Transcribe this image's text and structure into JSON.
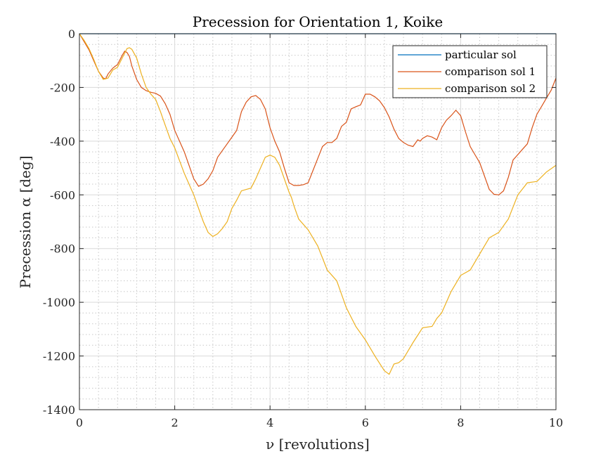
{
  "chart_data": {
    "type": "line",
    "title": "Precession for Orientation 1, Koike",
    "xlabel": "ν [revolutions]",
    "ylabel": "Precession α [deg]",
    "xlim": [
      0,
      10
    ],
    "ylim": [
      -1400,
      0
    ],
    "xticks": [
      0,
      2,
      4,
      6,
      8,
      10
    ],
    "xtick_labels": [
      "0",
      "2",
      "4",
      "6",
      "8",
      "10"
    ],
    "yticks": [
      0,
      -200,
      -400,
      -600,
      -800,
      -1000,
      -1200,
      -1400
    ],
    "ytick_labels": [
      "0",
      "-200",
      "-400",
      "-600",
      "-800",
      "-1000",
      "-1200",
      "-1400"
    ],
    "grid": true,
    "minor_grid": true,
    "legend_position": "top-right",
    "series": [
      {
        "name": "particular sol",
        "color": "#0072BD",
        "x": [
          0,
          10
        ],
        "y": [
          0,
          0
        ]
      },
      {
        "name": "comparison sol 1",
        "color": "#D95319",
        "x": [
          0,
          0.1,
          0.2,
          0.3,
          0.4,
          0.5,
          0.55,
          0.6,
          0.7,
          0.8,
          0.9,
          0.95,
          1.0,
          1.05,
          1.1,
          1.2,
          1.3,
          1.4,
          1.5,
          1.6,
          1.7,
          1.8,
          1.9,
          2.0,
          2.2,
          2.4,
          2.5,
          2.6,
          2.7,
          2.8,
          2.9,
          3.0,
          3.1,
          3.2,
          3.3,
          3.4,
          3.5,
          3.6,
          3.7,
          3.8,
          3.9,
          4.0,
          4.1,
          4.2,
          4.3,
          4.4,
          4.5,
          4.6,
          4.7,
          4.8,
          4.9,
          5.0,
          5.1,
          5.2,
          5.3,
          5.4,
          5.5,
          5.6,
          5.7,
          5.8,
          5.9,
          6.0,
          6.1,
          6.2,
          6.3,
          6.4,
          6.5,
          6.6,
          6.7,
          6.8,
          6.9,
          7.0,
          7.1,
          7.15,
          7.2,
          7.3,
          7.4,
          7.5,
          7.6,
          7.7,
          7.8,
          7.9,
          8.0,
          8.1,
          8.2,
          8.3,
          8.4,
          8.5,
          8.6,
          8.7,
          8.8,
          8.9,
          9.0,
          9.1,
          9.2,
          9.3,
          9.4,
          9.5,
          9.6,
          9.7,
          9.8,
          9.9,
          10.0
        ],
        "y": [
          0,
          -30,
          -60,
          -100,
          -140,
          -165,
          -168,
          -150,
          -128,
          -115,
          -80,
          -65,
          -70,
          -85,
          -120,
          -170,
          -200,
          -212,
          -218,
          -222,
          -232,
          -260,
          -300,
          -360,
          -440,
          -540,
          -568,
          -560,
          -540,
          -510,
          -460,
          -435,
          -410,
          -385,
          -360,
          -290,
          -255,
          -235,
          -230,
          -245,
          -280,
          -350,
          -400,
          -440,
          -500,
          -555,
          -565,
          -565,
          -562,
          -555,
          -510,
          -465,
          -420,
          -405,
          -405,
          -390,
          -345,
          -330,
          -280,
          -272,
          -265,
          -225,
          -225,
          -235,
          -250,
          -275,
          -310,
          -355,
          -390,
          -405,
          -415,
          -420,
          -395,
          -400,
          -390,
          -380,
          -385,
          -395,
          -350,
          -322,
          -305,
          -285,
          -305,
          -365,
          -420,
          -450,
          -480,
          -530,
          -580,
          -598,
          -600,
          -585,
          -535,
          -470,
          -450,
          -430,
          -410,
          -350,
          -300,
          -270,
          -240,
          -210,
          -165
        ]
      },
      {
        "name": "comparison sol 2",
        "color": "#EDB120",
        "x": [
          0,
          0.1,
          0.2,
          0.3,
          0.4,
          0.5,
          0.6,
          0.7,
          0.8,
          0.9,
          1.0,
          1.05,
          1.1,
          1.2,
          1.3,
          1.4,
          1.5,
          1.6,
          1.7,
          1.8,
          1.9,
          2.0,
          2.2,
          2.4,
          2.6,
          2.7,
          2.8,
          2.9,
          3.0,
          3.1,
          3.2,
          3.3,
          3.4,
          3.5,
          3.6,
          3.7,
          3.8,
          3.9,
          4.0,
          4.1,
          4.2,
          4.3,
          4.4,
          4.45,
          4.5,
          4.6,
          4.8,
          5.0,
          5.2,
          5.4,
          5.6,
          5.8,
          6.0,
          6.2,
          6.4,
          6.5,
          6.6,
          6.7,
          6.8,
          7.0,
          7.2,
          7.4,
          7.5,
          7.6,
          7.8,
          8.0,
          8.2,
          8.4,
          8.6,
          8.8,
          9.0,
          9.2,
          9.4,
          9.6,
          9.8,
          10.0
        ],
        "y": [
          0,
          -25,
          -55,
          -95,
          -140,
          -170,
          -165,
          -135,
          -125,
          -90,
          -55,
          -52,
          -58,
          -90,
          -150,
          -200,
          -225,
          -245,
          -290,
          -340,
          -390,
          -425,
          -520,
          -600,
          -700,
          -740,
          -755,
          -745,
          -725,
          -700,
          -650,
          -620,
          -585,
          -580,
          -575,
          -540,
          -500,
          -460,
          -452,
          -460,
          -490,
          -540,
          -590,
          -610,
          -640,
          -690,
          -730,
          -790,
          -880,
          -920,
          -1020,
          -1090,
          -1140,
          -1200,
          -1255,
          -1268,
          -1230,
          -1225,
          -1210,
          -1150,
          -1095,
          -1090,
          -1060,
          -1040,
          -960,
          -900,
          -880,
          -820,
          -760,
          -740,
          -690,
          -600,
          -555,
          -550,
          -515,
          -490
        ]
      }
    ]
  }
}
